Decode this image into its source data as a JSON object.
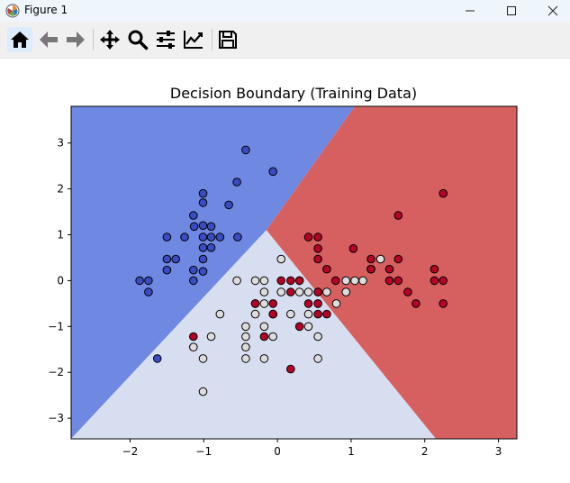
{
  "window": {
    "title": "Figure 1"
  },
  "toolbar": {
    "tools": [
      "home-icon",
      "back-arrow-icon",
      "forward-arrow-icon",
      "pan-icon",
      "zoom-icon",
      "subplots-icon",
      "edit-axis-icon",
      "save-icon"
    ]
  },
  "chart_data": {
    "type": "scatter",
    "title": "Decision Boundary (Training Data)",
    "xlabel": "",
    "ylabel": "",
    "xlim": [
      -2.8,
      3.25
    ],
    "ylim": [
      -3.45,
      3.8
    ],
    "x_ticks": [
      -2,
      -1,
      0,
      1,
      2,
      3
    ],
    "y_ticks": [
      -3,
      -2,
      -1,
      0,
      1,
      2,
      3
    ],
    "grid": false,
    "legend": "none",
    "classes": [
      {
        "color": "#3b4cc0",
        "region": "#6f88e2"
      },
      {
        "color": "#dddddd",
        "region": "#d7def0"
      },
      {
        "color": "#b40426",
        "region": "#d6605f"
      }
    ],
    "boundaries": [
      {
        "x": [
          -0.15,
          1.05
        ],
        "y": [
          1.1,
          3.8
        ]
      },
      {
        "x": [
          -2.8,
          -0.15
        ],
        "y": [
          -3.45,
          1.1
        ]
      },
      {
        "x": [
          -0.15,
          2.15
        ],
        "y": [
          1.1,
          -3.45
        ]
      }
    ],
    "series": [
      {
        "class": 0,
        "points": [
          [
            -0.43,
            2.85
          ],
          [
            -0.06,
            2.38
          ],
          [
            -0.55,
            2.15
          ],
          [
            -1.01,
            1.9
          ],
          [
            -1.01,
            1.7
          ],
          [
            -0.66,
            1.65
          ],
          [
            -1.14,
            1.42
          ],
          [
            -1.01,
            1.2
          ],
          [
            -1.13,
            1.18
          ],
          [
            -0.9,
            1.18
          ],
          [
            -1.5,
            0.95
          ],
          [
            -1.26,
            0.95
          ],
          [
            -1.01,
            0.95
          ],
          [
            -0.9,
            0.95
          ],
          [
            -0.78,
            0.95
          ],
          [
            -0.54,
            0.95
          ],
          [
            -1.01,
            0.72
          ],
          [
            -0.9,
            0.72
          ],
          [
            -1.5,
            0.47
          ],
          [
            -1.38,
            0.47
          ],
          [
            -1.01,
            0.47
          ],
          [
            -1.5,
            0.23
          ],
          [
            -1.14,
            0.23
          ],
          [
            -1.01,
            0.2
          ],
          [
            -1.87,
            0.0
          ],
          [
            -1.75,
            0.0
          ],
          [
            -1.14,
            0.0
          ],
          [
            -1.75,
            -0.25
          ],
          [
            -1.63,
            -1.7
          ]
        ]
      },
      {
        "class": 1,
        "points": [
          [
            0.05,
            0.47
          ],
          [
            1.4,
            0.47
          ],
          [
            1.27,
            0.25
          ],
          [
            -0.55,
            0.0
          ],
          [
            -0.3,
            0.0
          ],
          [
            -0.18,
            0.0
          ],
          [
            0.3,
            0.0
          ],
          [
            0.93,
            0.0
          ],
          [
            1.05,
            0.0
          ],
          [
            1.16,
            0.0
          ],
          [
            -0.18,
            -0.25
          ],
          [
            0.05,
            -0.25
          ],
          [
            0.3,
            -0.25
          ],
          [
            0.42,
            -0.25
          ],
          [
            0.55,
            -0.25
          ],
          [
            0.67,
            -0.25
          ],
          [
            0.93,
            -0.25
          ],
          [
            -0.3,
            -0.5
          ],
          [
            -0.18,
            -0.5
          ],
          [
            0.55,
            -0.5
          ],
          [
            0.8,
            -0.5
          ],
          [
            -0.3,
            -0.73
          ],
          [
            -0.06,
            -0.73
          ],
          [
            0.18,
            -0.73
          ],
          [
            0.42,
            -0.73
          ],
          [
            -0.78,
            -0.73
          ],
          [
            -0.43,
            -1.0
          ],
          [
            -0.18,
            -1.0
          ],
          [
            0.42,
            -1.0
          ],
          [
            -0.43,
            -1.22
          ],
          [
            -0.06,
            -1.22
          ],
          [
            -0.9,
            -1.22
          ],
          [
            0.55,
            -1.22
          ],
          [
            -1.14,
            -1.45
          ],
          [
            -0.43,
            -1.45
          ],
          [
            -0.43,
            -1.7
          ],
          [
            -1.01,
            -1.7
          ],
          [
            -0.18,
            -1.7
          ],
          [
            0.55,
            -1.7
          ],
          [
            -1.01,
            -2.42
          ]
        ]
      },
      {
        "class": 2,
        "points": [
          [
            2.25,
            1.9
          ],
          [
            1.64,
            1.42
          ],
          [
            0.42,
            0.95
          ],
          [
            0.55,
            0.95
          ],
          [
            0.55,
            0.7
          ],
          [
            1.03,
            0.7
          ],
          [
            0.55,
            0.47
          ],
          [
            1.27,
            0.47
          ],
          [
            1.64,
            0.47
          ],
          [
            0.67,
            0.25
          ],
          [
            1.27,
            0.25
          ],
          [
            1.52,
            0.25
          ],
          [
            2.13,
            0.25
          ],
          [
            0.05,
            0.0
          ],
          [
            0.18,
            0.0
          ],
          [
            0.3,
            0.0
          ],
          [
            0.79,
            0.0
          ],
          [
            1.52,
            0.0
          ],
          [
            1.64,
            0.0
          ],
          [
            2.13,
            0.0
          ],
          [
            2.25,
            0.0
          ],
          [
            0.18,
            -0.25
          ],
          [
            0.55,
            -0.25
          ],
          [
            1.77,
            -0.25
          ],
          [
            -0.3,
            -0.5
          ],
          [
            0.42,
            -0.5
          ],
          [
            0.55,
            -0.5
          ],
          [
            1.88,
            -0.5
          ],
          [
            2.25,
            -0.5
          ],
          [
            -0.06,
            -0.5
          ],
          [
            -0.06,
            -0.73
          ],
          [
            0.55,
            -0.73
          ],
          [
            0.67,
            -0.73
          ],
          [
            0.3,
            -1.0
          ],
          [
            -0.18,
            -1.22
          ],
          [
            -1.14,
            -1.22
          ],
          [
            0.18,
            -1.93
          ]
        ]
      }
    ]
  }
}
